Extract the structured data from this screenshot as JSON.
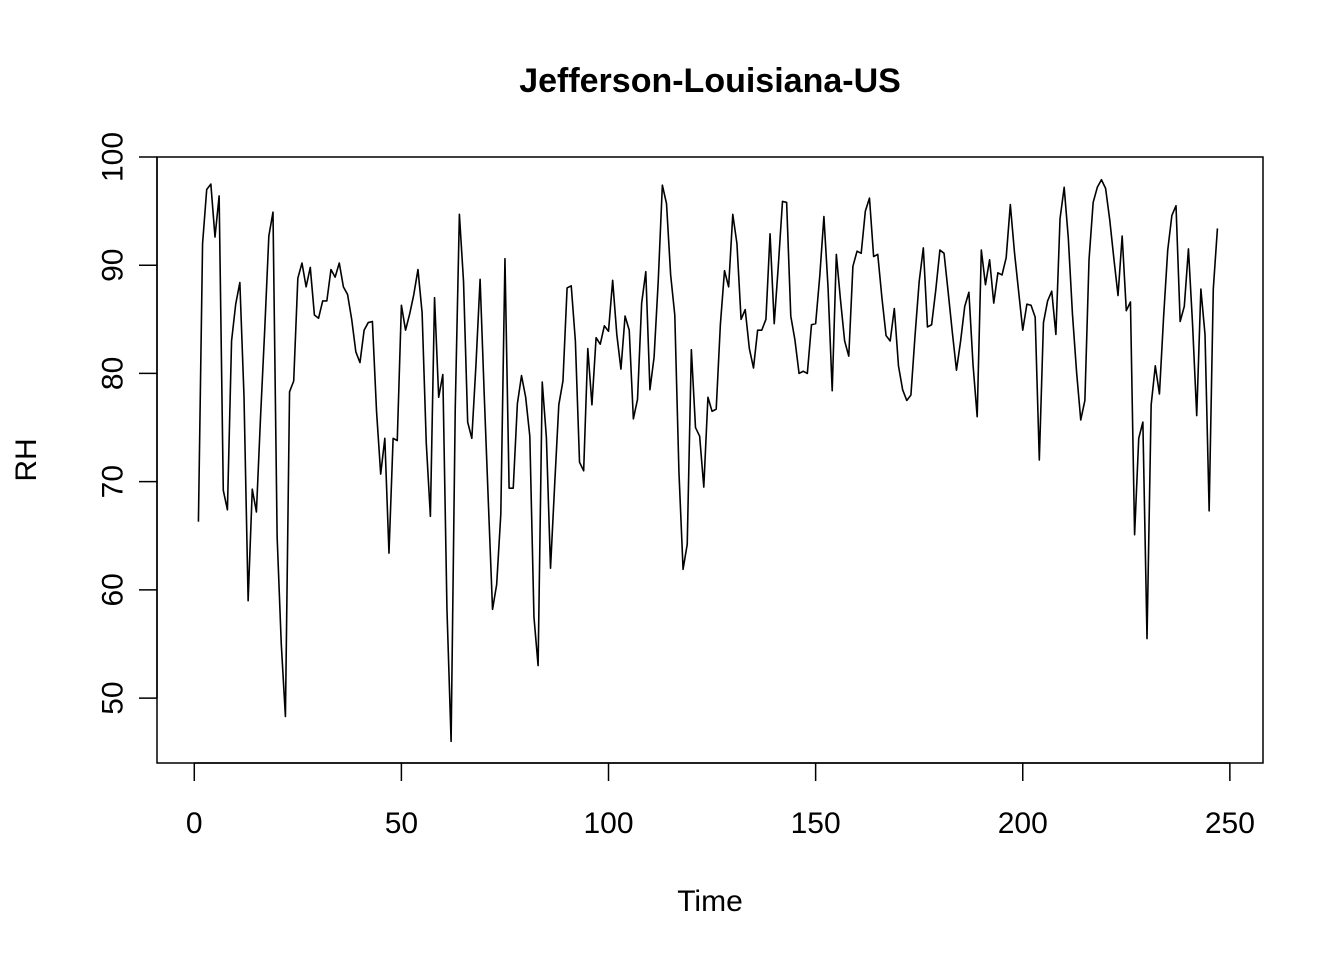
{
  "chart_data": {
    "type": "line",
    "title": "Jefferson-Louisiana-US",
    "xlabel": "Time",
    "ylabel": "RH",
    "xlim": [
      -9,
      258
    ],
    "ylim": [
      44,
      100
    ],
    "x_ticks": [
      0,
      50,
      100,
      150,
      200,
      250
    ],
    "y_ticks": [
      50,
      60,
      70,
      80,
      90,
      100
    ],
    "x_tick_labels": [
      "0",
      "50",
      "100",
      "150",
      "200",
      "250"
    ],
    "y_tick_labels": [
      "50",
      "60",
      "70",
      "80",
      "90",
      "100"
    ],
    "grid": false,
    "line_color": "#000000",
    "series": [
      {
        "x_start": 1,
        "x_step": 1,
        "values": [
          66.3,
          92,
          97,
          97.5,
          92.6,
          96.4,
          69.2,
          67.4,
          83,
          86.4,
          88.4,
          77.9,
          59,
          69.3,
          67.2,
          76,
          84,
          92.7,
          94.9,
          64.9,
          55,
          48.3,
          78.3,
          79.3,
          88.8,
          90.2,
          88,
          89.8,
          85.4,
          85.1,
          86.7,
          86.7,
          89.6,
          88.9,
          90.2,
          88,
          87.3,
          85,
          82,
          81,
          84,
          84.7,
          84.8,
          76.5,
          70.7,
          74,
          63.4,
          74,
          73.8,
          86.3,
          84,
          85.5,
          87.3,
          89.6,
          85.6,
          73.6,
          66.8,
          87,
          77.8,
          79.9,
          58.2,
          46,
          76.8,
          94.7,
          88.5,
          75.5,
          74,
          80.8,
          88.7,
          78,
          68,
          58.2,
          60.5,
          67,
          90.6,
          69.4,
          69.4,
          77.2,
          79.8,
          77.8,
          74.2,
          57.5,
          53,
          79.2,
          74.1,
          62,
          69.7,
          77.1,
          79.3,
          87.9,
          88.1,
          83,
          71.8,
          71,
          82.3,
          77.1,
          83.3,
          82.7,
          84.4,
          83.9,
          88.6,
          83.6,
          80.4,
          85.3,
          84,
          75.8,
          77.6,
          86.5,
          89.4,
          78.5,
          81.5,
          88.5,
          97.4,
          95.7,
          89.1,
          85.4,
          70.9,
          61.9,
          64.2,
          82.2,
          75,
          74.2,
          69.5,
          77.8,
          76.5,
          76.7,
          84.5,
          89.5,
          88,
          94.7,
          92,
          85,
          85.9,
          82.3,
          80.5,
          84,
          84,
          85,
          92.9,
          84.6,
          90,
          95.9,
          95.8,
          85.3,
          83.1,
          80,
          80.2,
          80,
          84.5,
          84.6,
          89,
          94.5,
          87.9,
          78.4,
          91,
          86.8,
          83,
          81.6,
          89.9,
          91.3,
          91.1,
          95,
          96.2,
          90.8,
          91,
          87,
          83.5,
          83,
          86,
          80.7,
          78.5,
          77.5,
          78,
          83.5,
          88.5,
          91.6,
          84.3,
          84.5,
          87.7,
          91.4,
          91.1,
          87.5,
          83.8,
          80.3,
          83,
          86.2,
          87.5,
          80.8,
          76,
          91.4,
          88.2,
          90.5,
          86.5,
          89.3,
          89.1,
          90.7,
          95.6,
          91.2,
          87.6,
          84,
          86.4,
          86.3,
          85.2,
          72,
          84.7,
          86.7,
          87.6,
          83.6,
          94.3,
          97.2,
          92.5,
          85.5,
          80.1,
          75.7,
          77.5,
          90.5,
          95.8,
          97.2,
          97.9,
          97.1,
          94.2,
          90.6,
          87.2,
          92.7,
          85.8,
          86.6,
          65.1,
          74,
          75.5,
          55.5,
          77.1,
          80.7,
          78.1,
          85.2,
          91.4,
          94.6,
          95.5,
          84.8,
          86.2,
          91.5,
          84.5,
          76.1,
          87.8,
          83.6,
          67.3,
          87.8,
          93.4
        ]
      }
    ]
  }
}
